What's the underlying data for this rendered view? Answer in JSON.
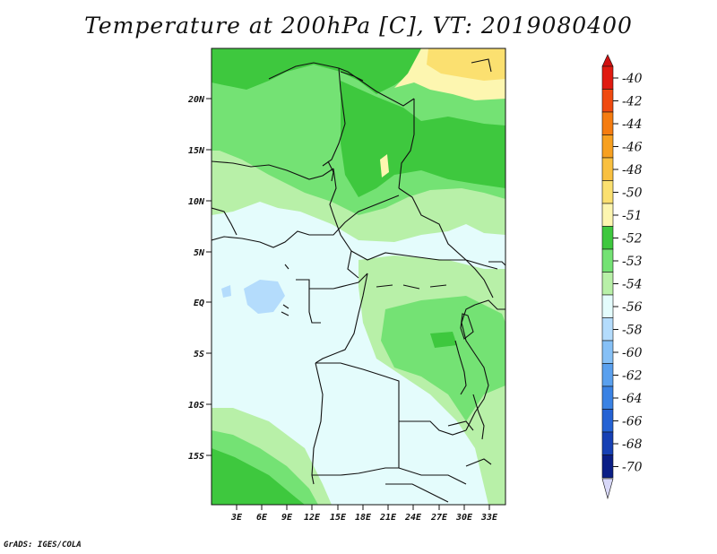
{
  "title": "Temperature at 200hPa [C], VT: 2019080400",
  "credit": "GrADS: IGES/COLA",
  "map": {
    "lat_labels": [
      "20N",
      "15N",
      "10N",
      "5N",
      "EQ",
      "5S",
      "10S",
      "15S"
    ],
    "lon_labels": [
      "3E",
      "6E",
      "9E",
      "12E",
      "15E",
      "18E",
      "21E",
      "24E",
      "27E",
      "30E",
      "33E"
    ]
  },
  "colorbar": {
    "levels": [
      {
        "label": "-40",
        "color": "#e01a10"
      },
      {
        "label": "-42",
        "color": "#f04a10"
      },
      {
        "label": "-44",
        "color": "#f57c10"
      },
      {
        "label": "-46",
        "color": "#f7a020"
      },
      {
        "label": "-48",
        "color": "#f9c040"
      },
      {
        "label": "-50",
        "color": "#fbe070"
      },
      {
        "label": "-51",
        "color": "#fdf6b0"
      },
      {
        "label": "-52",
        "color": "#3ec83e"
      },
      {
        "label": "-53",
        "color": "#74e274"
      },
      {
        "label": "-54",
        "color": "#b8f0a8"
      },
      {
        "label": "-56",
        "color": "#e4fcfc"
      },
      {
        "label": "-58",
        "color": "#b4dcfc"
      },
      {
        "label": "-60",
        "color": "#86c0f6"
      },
      {
        "label": "-62",
        "color": "#5aa0ee"
      },
      {
        "label": "-64",
        "color": "#3a82e4"
      },
      {
        "label": "-66",
        "color": "#2462d4"
      },
      {
        "label": "-68",
        "color": "#1640b4"
      },
      {
        "label": "-70",
        "color": "#0a1e86"
      }
    ],
    "top_color": "#d01010",
    "bottom_color": "#d8d8f8"
  }
}
